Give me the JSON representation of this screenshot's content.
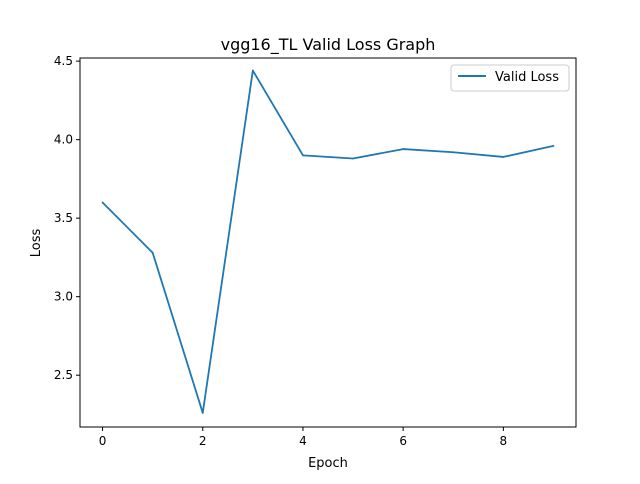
{
  "chart_data": {
    "type": "line",
    "title": "vgg16_TL Valid Loss Graph",
    "xlabel": "Epoch",
    "ylabel": "Loss",
    "xlim": [
      -0.45,
      9.45
    ],
    "ylim": [
      2.17,
      4.52
    ],
    "xticks": [
      0,
      2,
      4,
      6,
      8
    ],
    "xtick_labels": [
      "0",
      "2",
      "4",
      "6",
      "8"
    ],
    "yticks": [
      2.5,
      3.0,
      3.5,
      4.0,
      4.5
    ],
    "ytick_labels": [
      "2.5",
      "3.0",
      "3.5",
      "4.0",
      "4.5"
    ],
    "grid": false,
    "legend_position": "top-right",
    "series": [
      {
        "name": "Valid Loss",
        "color": "#1f77b4",
        "x": [
          0,
          1,
          2,
          3,
          4,
          5,
          6,
          7,
          8,
          9
        ],
        "y": [
          3.6,
          3.28,
          2.26,
          4.44,
          3.9,
          3.88,
          3.94,
          3.92,
          3.89,
          3.96
        ]
      }
    ]
  }
}
